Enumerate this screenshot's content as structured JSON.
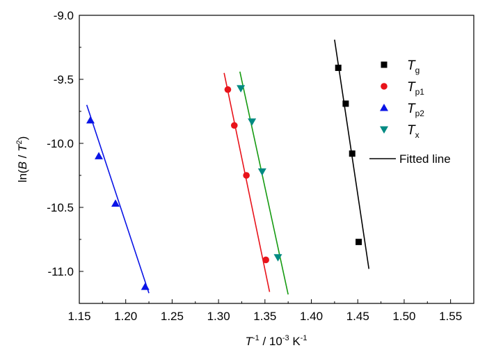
{
  "chart_data": {
    "type": "scatter",
    "title": "",
    "xlabel": {
      "base": "T",
      "sup1": "-1",
      "mid": " / 10",
      "sup2": "-3",
      "unit": " K",
      "sup3": "-1"
    },
    "ylabel": {
      "pre": "ln(",
      "b": "B",
      "slash": " / ",
      "t": "T",
      "sup": "2",
      "post": ")"
    },
    "xlim": [
      1.15,
      1.575
    ],
    "ylim": [
      -11.25,
      -9.0
    ],
    "x_ticks": [
      1.15,
      1.2,
      1.25,
      1.3,
      1.35,
      1.4,
      1.45,
      1.5,
      1.55
    ],
    "x_tick_labels": [
      "1.15",
      "1.20",
      "1.25",
      "1.30",
      "1.35",
      "1.40",
      "1.45",
      "1.50",
      "1.55"
    ],
    "y_ticks": [
      -9.0,
      -9.5,
      -10.0,
      -10.5,
      -11.0
    ],
    "y_tick_labels": [
      "-9.0",
      "-9.5",
      "-10.0",
      "-10.5",
      "-11.0"
    ],
    "grid": false,
    "legend_position": "top-right",
    "series": [
      {
        "name": "T",
        "sub": "g",
        "marker": "square",
        "color": "#000000",
        "x": [
          1.429,
          1.437,
          1.444,
          1.451
        ],
        "y": [
          -9.41,
          -9.69,
          -10.08,
          -10.77
        ],
        "fit": {
          "x": [
            1.425,
            1.462
          ],
          "y": [
            -9.19,
            -10.98
          ],
          "color": "#000000"
        }
      },
      {
        "name": "T",
        "sub": "p1",
        "marker": "circle",
        "color": "#e8131a",
        "x": [
          1.31,
          1.317,
          1.33,
          1.351
        ],
        "y": [
          -9.58,
          -9.86,
          -10.25,
          -10.91
        ],
        "fit": {
          "x": [
            1.306,
            1.355
          ],
          "y": [
            -9.45,
            -11.16
          ],
          "color": "#e8131a"
        }
      },
      {
        "name": "T",
        "sub": "p2",
        "marker": "triangle-up",
        "color": "#0a14e6",
        "x": [
          1.162,
          1.171,
          1.189,
          1.221
        ],
        "y": [
          -9.82,
          -10.1,
          -10.47,
          -11.12
        ],
        "fit": {
          "x": [
            1.158,
            1.225
          ],
          "y": [
            -9.7,
            -11.17
          ],
          "color": "#0a14e6"
        }
      },
      {
        "name": "T",
        "sub": "x",
        "marker": "triangle-down",
        "color": "#008a82",
        "x": [
          1.324,
          1.336,
          1.347,
          1.364
        ],
        "y": [
          -9.57,
          -9.83,
          -10.22,
          -10.89
        ],
        "fit": {
          "x": [
            1.323,
            1.375
          ],
          "y": [
            -9.44,
            -11.18
          ],
          "color": "#159a10"
        }
      }
    ],
    "legend_line_label": "Fitted line"
  }
}
